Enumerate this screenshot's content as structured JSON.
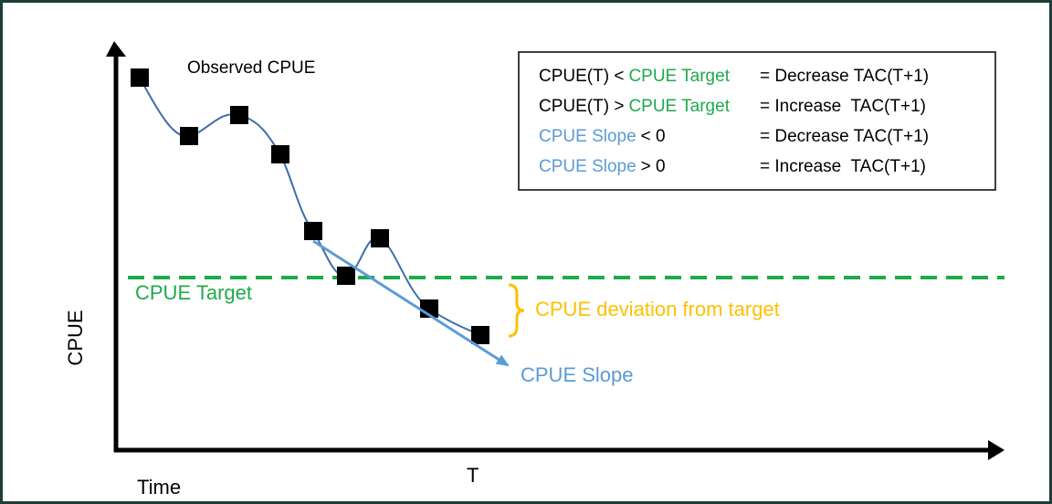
{
  "labels": {
    "observed": "Observed CPUE",
    "y_axis": "CPUE",
    "x_axis": "Time",
    "t_mark": "T",
    "target": "CPUE Target",
    "deviation": "CPUE deviation from target",
    "slope": "CPUE Slope"
  },
  "legend": {
    "rows": [
      {
        "parts": [
          {
            "text": "CPUE(T) <",
            "color": "#000000"
          },
          {
            "text": "CPUE Target",
            "color": "#1faa4b"
          }
        ],
        "action": "= Decrease TAC(T+1)"
      },
      {
        "parts": [
          {
            "text": "CPUE(T) >",
            "color": "#000000"
          },
          {
            "text": "CPUE Target",
            "color": "#1faa4b"
          }
        ],
        "action": "= Increase  TAC(T+1)"
      },
      {
        "parts": [
          {
            "text": "CPUE Slope",
            "color": "#5b9bd5"
          },
          {
            "text": "< 0",
            "color": "#000000"
          }
        ],
        "action": "= Decrease TAC(T+1)"
      },
      {
        "parts": [
          {
            "text": "CPUE Slope",
            "color": "#5b9bd5"
          },
          {
            "text": "> 0",
            "color": "#000000"
          }
        ],
        "action": "= Increase  TAC(T+1)"
      }
    ]
  }
}
